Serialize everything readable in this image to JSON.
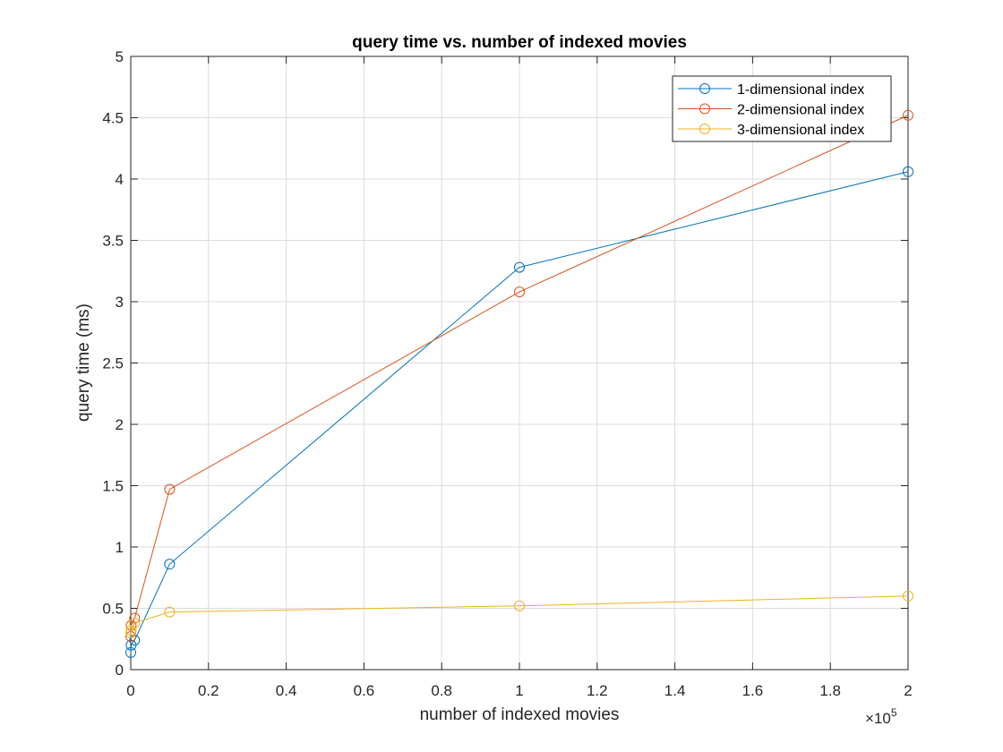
{
  "chart_data": {
    "type": "line",
    "title": "query time vs. number of indexed movies",
    "xlabel": "number of indexed movies",
    "ylabel": "query time (ms)",
    "x_exponent_label": "×10",
    "x_exponent": "5",
    "xlim": [
      0,
      200000
    ],
    "ylim": [
      0,
      5
    ],
    "xticks": [
      0,
      20000,
      40000,
      60000,
      80000,
      100000,
      120000,
      140000,
      160000,
      180000,
      200000
    ],
    "xtick_labels": [
      "0",
      "0.2",
      "0.4",
      "0.6",
      "0.8",
      "1",
      "1.2",
      "1.4",
      "1.6",
      "1.8",
      "2"
    ],
    "yticks": [
      0,
      0.5,
      1,
      1.5,
      2,
      2.5,
      3,
      3.5,
      4,
      4.5,
      5
    ],
    "ytick_labels": [
      "0",
      "0.5",
      "1",
      "1.5",
      "2",
      "2.5",
      "3",
      "3.5",
      "4",
      "4.5",
      "5"
    ],
    "grid": true,
    "legend_position": "top-right",
    "marker": "circle",
    "series": [
      {
        "name": "1-dimensional index",
        "color": "#0072BD",
        "x": [
          10,
          100,
          1000,
          10000,
          100000,
          200000
        ],
        "y": [
          0.14,
          0.2,
          0.24,
          0.86,
          3.28,
          4.06
        ]
      },
      {
        "name": "2-dimensional index",
        "color": "#D95319",
        "x": [
          10,
          100,
          1000,
          10000,
          100000,
          200000
        ],
        "y": [
          0.27,
          0.36,
          0.42,
          1.47,
          3.08,
          4.52
        ]
      },
      {
        "name": "3-dimensional index",
        "color": "#EDB120",
        "x": [
          10,
          100,
          1000,
          10000,
          100000,
          200000
        ],
        "y": [
          0.3,
          0.32,
          0.38,
          0.47,
          0.52,
          0.6
        ]
      }
    ]
  }
}
